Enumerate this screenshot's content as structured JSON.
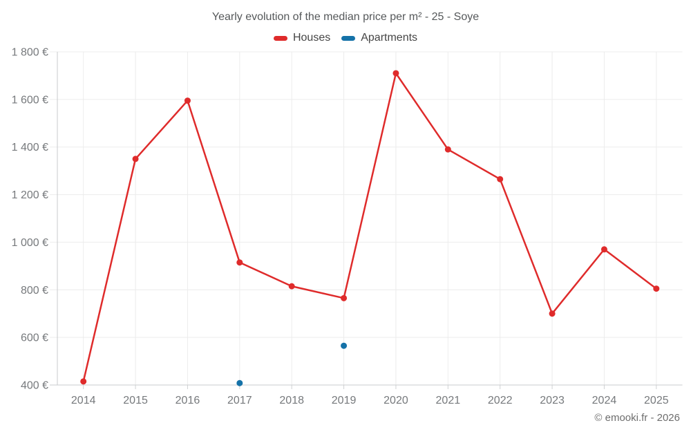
{
  "footer": {
    "text": "© emooki.fr - 2026"
  },
  "chart_data": {
    "type": "line",
    "title": "Yearly evolution of the median price per m² - 25 - Soye",
    "categories": [
      "2014",
      "2015",
      "2016",
      "2017",
      "2018",
      "2019",
      "2020",
      "2021",
      "2022",
      "2023",
      "2024",
      "2025"
    ],
    "series": [
      {
        "name": "Houses",
        "color": "#df2b2b",
        "values": [
          415,
          1350,
          1595,
          915,
          815,
          765,
          1710,
          1390,
          1265,
          700,
          970,
          805
        ]
      },
      {
        "name": "Apartments",
        "color": "#1572a8",
        "values": [
          null,
          null,
          null,
          408,
          null,
          565,
          null,
          null,
          null,
          null,
          null,
          null
        ]
      }
    ],
    "xlabel": "",
    "ylabel": "",
    "ylim": [
      400,
      1800
    ],
    "y_tick_step": 200,
    "y_tick_labels": [
      "400 €",
      "600 €",
      "800 €",
      "1 000 €",
      "1 200 €",
      "1 400 €",
      "1 600 €",
      "1 800 €"
    ],
    "currency": "€",
    "grid": true,
    "legend_position": "top"
  }
}
